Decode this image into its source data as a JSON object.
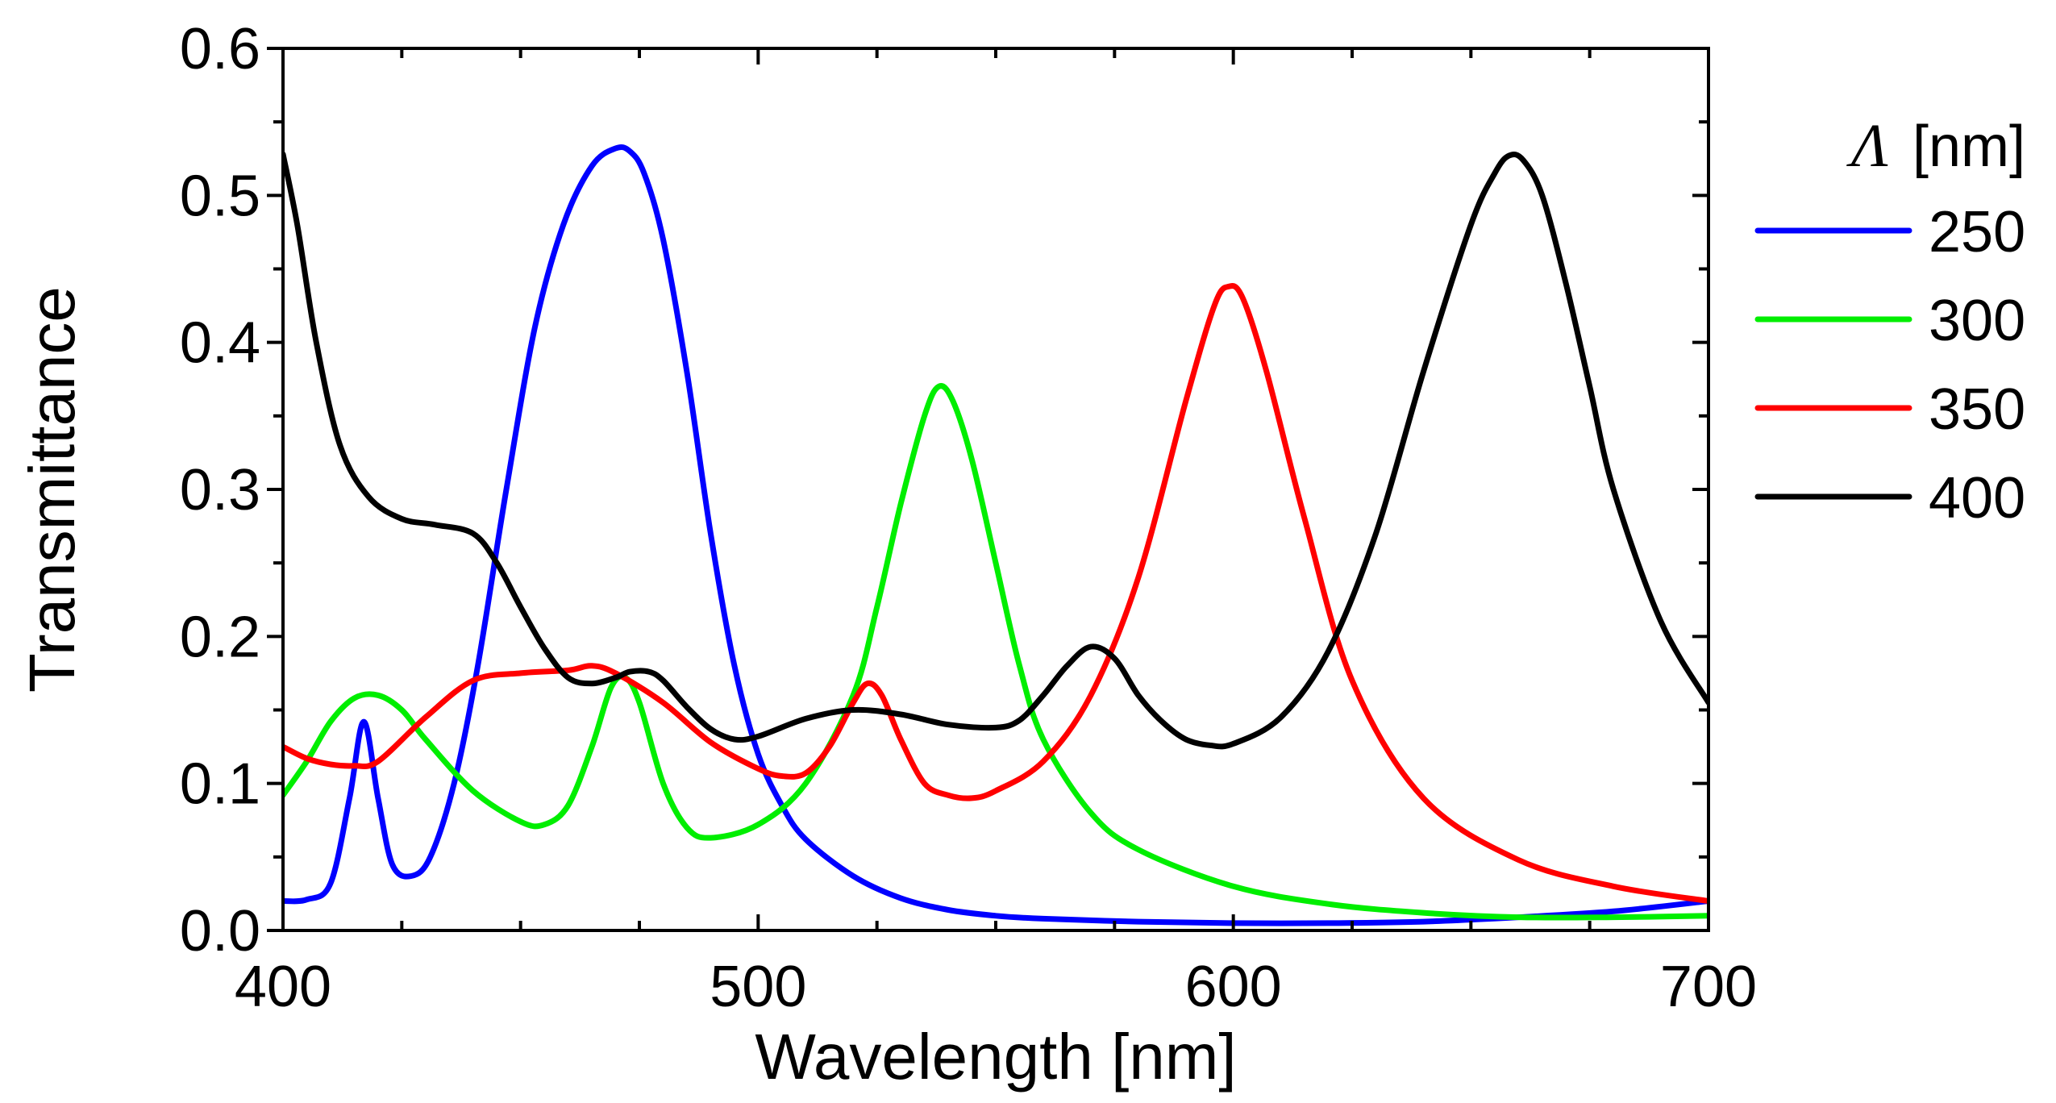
{
  "chart_data": {
    "type": "line",
    "xlabel": "Wavelength [nm]",
    "ylabel": "Transmittance",
    "xlim": [
      400,
      700
    ],
    "ylim": [
      0.0,
      0.6
    ],
    "xticks": [
      400,
      500,
      600,
      700
    ],
    "xtick_labels": [
      "400",
      "500",
      "600",
      "700"
    ],
    "yticks": [
      0.0,
      0.1,
      0.2,
      0.3,
      0.4,
      0.5,
      0.6
    ],
    "ytick_labels": [
      "0.0",
      "0.1",
      "0.2",
      "0.3",
      "0.4",
      "0.5",
      "0.6"
    ],
    "grid": false,
    "legend": {
      "placement": "right",
      "title_symbol": "Λ",
      "title_unit": "[nm]"
    },
    "series": [
      {
        "name": "250",
        "color": "#0000ff",
        "x": [
          400,
          405,
          410,
          414,
          417,
          420,
          423,
          427,
          431,
          436,
          441,
          447,
          453,
          459,
          465,
          470,
          473,
          476,
          480,
          485,
          490,
          495,
          500,
          505,
          510,
          520,
          530,
          540,
          550,
          560,
          580,
          600,
          620,
          640,
          660,
          680,
          700
        ],
        "y": [
          0.02,
          0.021,
          0.032,
          0.09,
          0.142,
          0.09,
          0.045,
          0.037,
          0.05,
          0.1,
          0.18,
          0.3,
          0.41,
          0.48,
          0.52,
          0.532,
          0.53,
          0.515,
          0.47,
          0.38,
          0.27,
          0.18,
          0.12,
          0.085,
          0.062,
          0.037,
          0.022,
          0.014,
          0.01,
          0.008,
          0.006,
          0.005,
          0.005,
          0.006,
          0.009,
          0.013,
          0.02
        ]
      },
      {
        "name": "300",
        "color": "#00ee00",
        "x": [
          400,
          405,
          410,
          415,
          420,
          425,
          430,
          440,
          450,
          455,
          460,
          465,
          469,
          472,
          475,
          480,
          485,
          490,
          500,
          510,
          520,
          525,
          530,
          535,
          538,
          541,
          545,
          550,
          555,
          560,
          570,
          580,
          600,
          620,
          640,
          660,
          680,
          700
        ],
        "y": [
          0.092,
          0.115,
          0.142,
          0.158,
          0.16,
          0.15,
          0.13,
          0.095,
          0.074,
          0.072,
          0.085,
          0.125,
          0.165,
          0.172,
          0.155,
          0.1,
          0.07,
          0.063,
          0.072,
          0.1,
          0.16,
          0.22,
          0.29,
          0.35,
          0.37,
          0.36,
          0.32,
          0.25,
          0.18,
          0.13,
          0.08,
          0.055,
          0.03,
          0.018,
          0.012,
          0.009,
          0.009,
          0.01
        ]
      },
      {
        "name": "350",
        "color": "#ff0000",
        "x": [
          400,
          405,
          410,
          415,
          420,
          430,
          440,
          450,
          460,
          465,
          470,
          480,
          490,
          500,
          505,
          510,
          515,
          520,
          523,
          526,
          530,
          535,
          540,
          545,
          550,
          560,
          570,
          580,
          590,
          596,
          599,
          602,
          607,
          615,
          625,
          640,
          660,
          680,
          700
        ],
        "y": [
          0.125,
          0.117,
          0.113,
          0.112,
          0.115,
          0.145,
          0.17,
          0.175,
          0.177,
          0.18,
          0.175,
          0.155,
          0.128,
          0.11,
          0.105,
          0.107,
          0.125,
          0.155,
          0.168,
          0.16,
          0.13,
          0.1,
          0.092,
          0.09,
          0.095,
          0.115,
          0.16,
          0.24,
          0.36,
          0.425,
          0.438,
          0.43,
          0.38,
          0.28,
          0.17,
          0.09,
          0.048,
          0.03,
          0.02
        ]
      },
      {
        "name": "400",
        "color": "#000000",
        "x": [
          400,
          403,
          407,
          412,
          418,
          425,
          432,
          440,
          445,
          450,
          455,
          460,
          465,
          470,
          473,
          477,
          480,
          485,
          490,
          495,
          500,
          510,
          520,
          530,
          540,
          550,
          555,
          560,
          565,
          570,
          575,
          580,
          585,
          590,
          595,
          600,
          610,
          620,
          630,
          640,
          650,
          655,
          658,
          661,
          665,
          670,
          675,
          680,
          690,
          700
        ],
        "y": [
          0.528,
          0.48,
          0.4,
          0.33,
          0.295,
          0.28,
          0.276,
          0.27,
          0.25,
          0.22,
          0.192,
          0.172,
          0.168,
          0.172,
          0.176,
          0.176,
          0.17,
          0.152,
          0.137,
          0.13,
          0.132,
          0.144,
          0.15,
          0.147,
          0.14,
          0.138,
          0.143,
          0.16,
          0.18,
          0.193,
          0.185,
          0.16,
          0.142,
          0.13,
          0.126,
          0.127,
          0.145,
          0.19,
          0.27,
          0.38,
          0.48,
          0.515,
          0.527,
          0.524,
          0.5,
          0.44,
          0.37,
          0.3,
          0.21,
          0.155
        ]
      }
    ]
  }
}
